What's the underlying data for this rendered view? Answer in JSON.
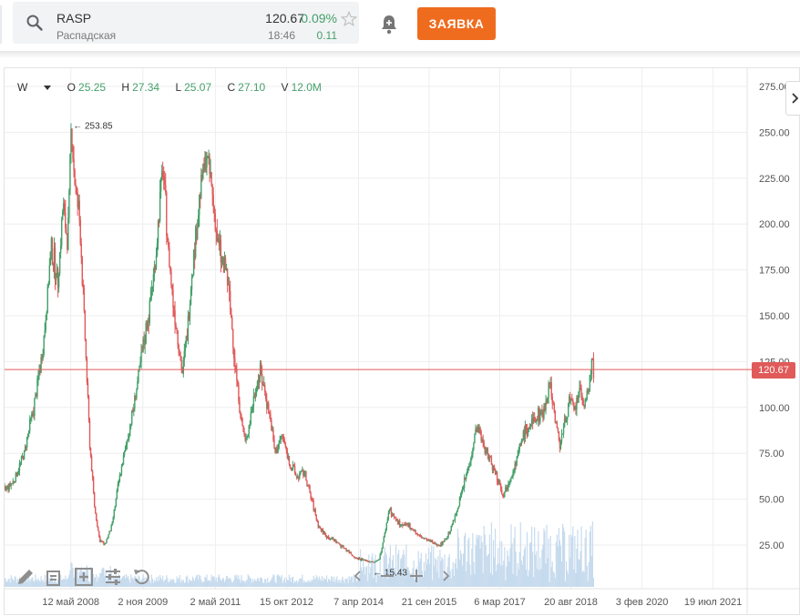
{
  "instrument": {
    "ticker": "RASP",
    "company": "Распадская",
    "price": "120.67",
    "change_pct": "0.09%",
    "time": "18:46",
    "change_abs": "0.11"
  },
  "order_button": {
    "label": "ЗАЯВКА"
  },
  "ohlc": {
    "interval": "W",
    "o_label": "O",
    "o": "25.25",
    "h_label": "H",
    "h": "27.34",
    "l_label": "L",
    "l": "25.07",
    "c_label": "C",
    "c": "27.10",
    "v_label": "V",
    "v": "12.0M"
  },
  "colors": {
    "up": "#45a06b",
    "down": "#e05a5a",
    "accent": "#ef6c1f",
    "volume": "#c7dbee"
  },
  "chart_data": {
    "type": "candlestick",
    "y_ticks": [
      "275.00",
      "250.00",
      "225.00",
      "200.00",
      "175.00",
      "150.00",
      "125.00",
      "100.00",
      "75.00",
      "50.00",
      "25.00"
    ],
    "y_tick_values": [
      275,
      250,
      225,
      200,
      175,
      150,
      125,
      100,
      75,
      50,
      25
    ],
    "ylim": [
      0,
      280
    ],
    "x_ticks": [
      "12 май 2008",
      "2 ноя 2009",
      "2 май 2011",
      "15 окт 2012",
      "7 апр 2014",
      "21 сен 2015",
      "6 мар 2017",
      "20 авг 2018",
      "3 фев 2020",
      "19 июл 2021"
    ],
    "x_tick_years": [
      2008.36,
      2009.84,
      2011.33,
      2012.79,
      2014.27,
      2015.72,
      2017.17,
      2018.63,
      2020.09,
      2021.55
    ],
    "xlim": [
      2007.0,
      2022.25
    ],
    "annotations": {
      "high": "253.85",
      "low": "15.43"
    },
    "high_value": 253.85,
    "low_value": 15.43,
    "last_price": "120.67",
    "last_price_value": 120.67,
    "price_path": [
      [
        2007.0,
        55
      ],
      [
        2007.2,
        60
      ],
      [
        2007.4,
        75
      ],
      [
        2007.6,
        100
      ],
      [
        2007.8,
        135
      ],
      [
        2007.95,
        185
      ],
      [
        2008.1,
        170
      ],
      [
        2008.2,
        210
      ],
      [
        2008.3,
        190
      ],
      [
        2008.37,
        253.85
      ],
      [
        2008.45,
        220
      ],
      [
        2008.55,
        200
      ],
      [
        2008.65,
        140
      ],
      [
        2008.75,
        80
      ],
      [
        2008.85,
        45
      ],
      [
        2008.95,
        28
      ],
      [
        2009.05,
        25
      ],
      [
        2009.2,
        35
      ],
      [
        2009.35,
        60
      ],
      [
        2009.5,
        80
      ],
      [
        2009.65,
        100
      ],
      [
        2009.8,
        125
      ],
      [
        2009.95,
        150
      ],
      [
        2010.1,
        180
      ],
      [
        2010.2,
        215
      ],
      [
        2010.25,
        232
      ],
      [
        2010.35,
        190
      ],
      [
        2010.45,
        160
      ],
      [
        2010.55,
        140
      ],
      [
        2010.65,
        118
      ],
      [
        2010.75,
        140
      ],
      [
        2010.85,
        175
      ],
      [
        2010.95,
        200
      ],
      [
        2011.05,
        225
      ],
      [
        2011.15,
        238
      ],
      [
        2011.25,
        220
      ],
      [
        2011.35,
        195
      ],
      [
        2011.45,
        180
      ],
      [
        2011.55,
        175
      ],
      [
        2011.65,
        150
      ],
      [
        2011.75,
        120
      ],
      [
        2011.85,
        95
      ],
      [
        2011.95,
        80
      ],
      [
        2012.05,
        95
      ],
      [
        2012.15,
        110
      ],
      [
        2012.25,
        120
      ],
      [
        2012.35,
        108
      ],
      [
        2012.45,
        95
      ],
      [
        2012.55,
        75
      ],
      [
        2012.7,
        85
      ],
      [
        2012.85,
        70
      ],
      [
        2013.0,
        62
      ],
      [
        2013.15,
        65
      ],
      [
        2013.3,
        50
      ],
      [
        2013.45,
        35
      ],
      [
        2013.6,
        30
      ],
      [
        2013.75,
        28
      ],
      [
        2013.9,
        25
      ],
      [
        2014.05,
        22
      ],
      [
        2014.2,
        18
      ],
      [
        2014.35,
        17
      ],
      [
        2014.5,
        16
      ],
      [
        2014.6,
        15.43
      ],
      [
        2014.7,
        18
      ],
      [
        2014.8,
        30
      ],
      [
        2014.9,
        45
      ],
      [
        2015.0,
        40
      ],
      [
        2015.15,
        35
      ],
      [
        2015.3,
        36
      ],
      [
        2015.5,
        30
      ],
      [
        2015.65,
        28
      ],
      [
        2015.8,
        26
      ],
      [
        2015.95,
        25
      ],
      [
        2016.1,
        30
      ],
      [
        2016.25,
        40
      ],
      [
        2016.4,
        55
      ],
      [
        2016.55,
        70
      ],
      [
        2016.7,
        90
      ],
      [
        2016.85,
        78
      ],
      [
        2017.0,
        70
      ],
      [
        2017.15,
        60
      ],
      [
        2017.25,
        52
      ],
      [
        2017.35,
        60
      ],
      [
        2017.5,
        70
      ],
      [
        2017.65,
        85
      ],
      [
        2017.8,
        90
      ],
      [
        2017.95,
        95
      ],
      [
        2018.1,
        100
      ],
      [
        2018.2,
        115
      ],
      [
        2018.3,
        95
      ],
      [
        2018.4,
        80
      ],
      [
        2018.5,
        90
      ],
      [
        2018.6,
        105
      ],
      [
        2018.7,
        98
      ],
      [
        2018.8,
        108
      ],
      [
        2018.9,
        102
      ],
      [
        2019.0,
        110
      ],
      [
        2019.06,
        128
      ],
      [
        2019.1,
        120.67
      ]
    ]
  }
}
